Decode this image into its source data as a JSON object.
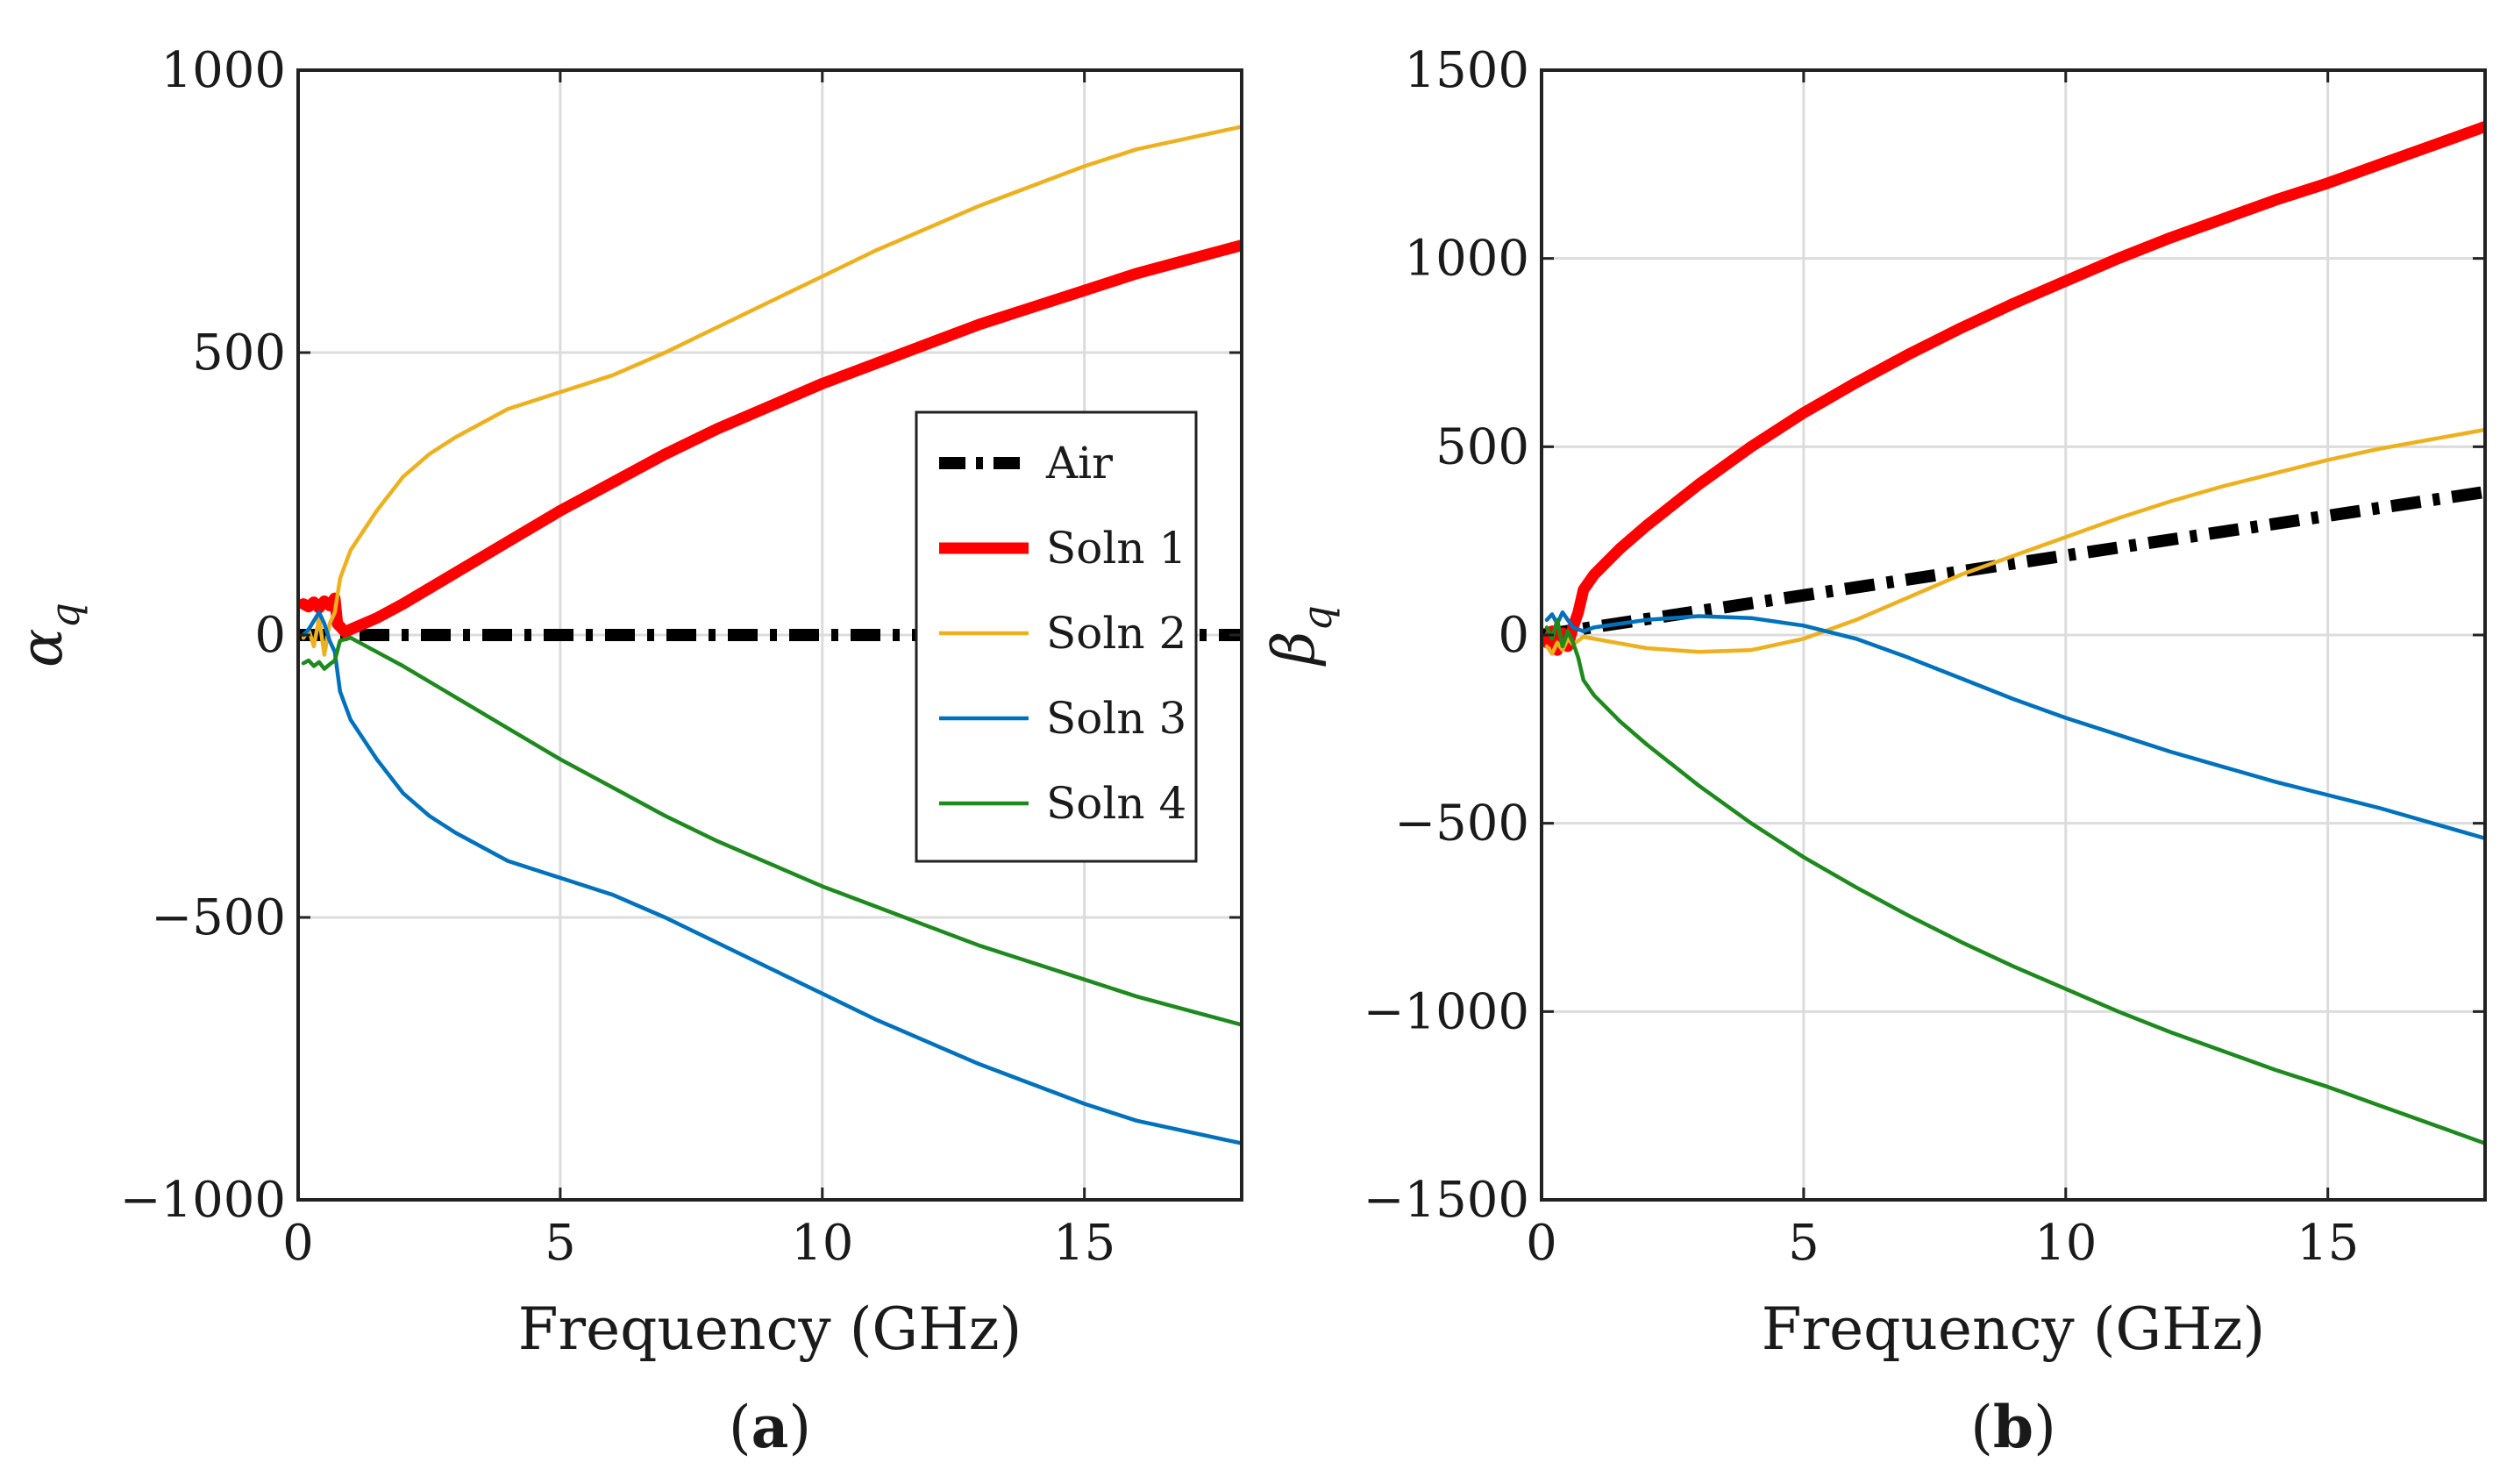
{
  "chart_data": [
    {
      "type": "line",
      "panel": "a",
      "caption_letter": "a",
      "ylabel_symbol": "α",
      "ylabel_subscript": "q",
      "xlabel": "Frequency (GHz)",
      "xlim": [
        0,
        18
      ],
      "ylim": [
        -1000,
        1000
      ],
      "xticks": [
        0,
        5,
        10,
        15
      ],
      "xtick_labels": [
        "0",
        "5",
        "10",
        "15"
      ],
      "yticks": [
        -1000,
        -500,
        0,
        500,
        1000
      ],
      "ytick_labels": [
        "−1000",
        "−500",
        "0",
        "500",
        "1000"
      ],
      "grid": true,
      "legend": {
        "placement": "right",
        "entries": [
          "Air",
          "Soln 1",
          "Soln 2",
          "Soln 3",
          "Soln 4"
        ]
      },
      "series": [
        {
          "name": "Air",
          "style": "dashdot",
          "color": "#000000",
          "x": [
            0,
            18
          ],
          "y": [
            0,
            0
          ]
        },
        {
          "name": "Soln 1",
          "style": "solid-thick",
          "color": "#ff0000",
          "x": [
            0.1,
            0.2,
            0.3,
            0.4,
            0.5,
            0.6,
            0.7,
            0.75,
            0.9,
            1,
            1.5,
            2,
            3,
            4,
            5,
            6,
            7,
            8,
            9,
            10,
            11,
            12,
            13,
            14,
            15,
            16,
            17,
            18
          ],
          "y": [
            55,
            50,
            58,
            48,
            60,
            52,
            65,
            20,
            5,
            10,
            30,
            55,
            110,
            165,
            220,
            270,
            320,
            365,
            405,
            445,
            480,
            515,
            550,
            580,
            610,
            640,
            665,
            690
          ]
        },
        {
          "name": "Soln 2",
          "style": "solid",
          "color": "#edb120",
          "x": [
            0.1,
            0.2,
            0.3,
            0.4,
            0.5,
            0.6,
            0.7,
            0.8,
            1,
            1.5,
            2,
            2.5,
            3,
            4,
            5,
            6,
            7,
            8,
            9,
            10,
            11,
            12,
            13,
            14,
            15,
            16,
            17,
            18
          ],
          "y": [
            -5,
            10,
            -20,
            30,
            -35,
            20,
            40,
            100,
            150,
            220,
            280,
            320,
            350,
            400,
            430,
            460,
            500,
            545,
            590,
            635,
            680,
            720,
            760,
            795,
            830,
            860,
            880,
            900
          ]
        },
        {
          "name": "Soln 3",
          "style": "solid",
          "color": "#0072bd",
          "x": [
            0.1,
            0.2,
            0.3,
            0.4,
            0.5,
            0.6,
            0.7,
            0.8,
            1,
            1.5,
            2,
            2.5,
            3,
            4,
            5,
            6,
            7,
            8,
            9,
            10,
            11,
            12,
            13,
            14,
            15,
            16,
            17,
            18
          ],
          "y": [
            0,
            10,
            25,
            40,
            20,
            -10,
            -30,
            -100,
            -150,
            -220,
            -280,
            -320,
            -350,
            -400,
            -430,
            -460,
            -500,
            -545,
            -590,
            -635,
            -680,
            -720,
            -760,
            -795,
            -830,
            -860,
            -880,
            -900
          ]
        },
        {
          "name": "Soln 4",
          "style": "solid",
          "color": "#1e8a1e",
          "x": [
            0.1,
            0.2,
            0.3,
            0.4,
            0.5,
            0.6,
            0.7,
            0.8,
            1,
            1.5,
            2,
            3,
            4,
            5,
            6,
            7,
            8,
            9,
            10,
            11,
            12,
            13,
            14,
            15,
            16,
            17,
            18
          ],
          "y": [
            -50,
            -45,
            -55,
            -48,
            -60,
            -52,
            -45,
            -10,
            -5,
            -30,
            -55,
            -110,
            -165,
            -220,
            -270,
            -320,
            -365,
            -405,
            -445,
            -480,
            -515,
            -550,
            -580,
            -610,
            -640,
            -665,
            -690
          ]
        }
      ]
    },
    {
      "type": "line",
      "panel": "b",
      "caption_letter": "b",
      "ylabel_symbol": "β",
      "ylabel_subscript": "q",
      "xlabel": "Frequency (GHz)",
      "xlim": [
        0,
        18
      ],
      "ylim": [
        -1500,
        1500
      ],
      "xticks": [
        0,
        5,
        10,
        15
      ],
      "xtick_labels": [
        "0",
        "5",
        "10",
        "15"
      ],
      "yticks": [
        -1500,
        -1000,
        -500,
        0,
        500,
        1000,
        1500
      ],
      "ytick_labels": [
        "−1500",
        "−1000",
        "−500",
        "0",
        "500",
        "1000",
        "1500"
      ],
      "grid": true,
      "legend": null,
      "series": [
        {
          "name": "Air",
          "style": "dashdot",
          "color": "#000000",
          "x": [
            0,
            18
          ],
          "y": [
            0,
            380
          ]
        },
        {
          "name": "Soln 1",
          "style": "solid-thick",
          "color": "#ff0000",
          "x": [
            0.1,
            0.2,
            0.3,
            0.4,
            0.5,
            0.6,
            0.7,
            0.8,
            1,
            1.5,
            2,
            3,
            4,
            5,
            6,
            7,
            8,
            9,
            10,
            11,
            12,
            13,
            14,
            15,
            16,
            17,
            18
          ],
          "y": [
            -20,
            10,
            -40,
            5,
            -30,
            20,
            60,
            120,
            160,
            230,
            290,
            400,
            500,
            590,
            670,
            745,
            815,
            880,
            940,
            1000,
            1055,
            1105,
            1155,
            1200,
            1250,
            1300,
            1350
          ]
        },
        {
          "name": "Soln 2",
          "style": "solid",
          "color": "#edb120",
          "x": [
            0.1,
            0.2,
            0.3,
            0.4,
            0.5,
            0.6,
            0.8,
            1,
            2,
            3,
            4,
            5,
            6,
            7,
            8,
            9,
            10,
            11,
            12,
            13,
            14,
            15,
            16,
            17,
            18
          ],
          "y": [
            -30,
            -50,
            -20,
            -40,
            -10,
            -25,
            -5,
            -10,
            -35,
            -45,
            -40,
            -10,
            40,
            100,
            160,
            210,
            260,
            310,
            355,
            395,
            430,
            465,
            495,
            520,
            545
          ]
        },
        {
          "name": "Soln 3",
          "style": "solid",
          "color": "#0072bd",
          "x": [
            0.1,
            0.2,
            0.3,
            0.4,
            0.5,
            0.6,
            0.8,
            1,
            2,
            3,
            4,
            5,
            6,
            7,
            8,
            9,
            10,
            11,
            12,
            13,
            14,
            15,
            16,
            17,
            18
          ],
          "y": [
            40,
            55,
            30,
            60,
            40,
            20,
            10,
            20,
            40,
            50,
            45,
            25,
            -10,
            -60,
            -115,
            -170,
            -220,
            -265,
            -310,
            -350,
            -390,
            -425,
            -460,
            -500,
            -540
          ]
        },
        {
          "name": "Soln 4",
          "style": "solid",
          "color": "#1e8a1e",
          "x": [
            0.1,
            0.2,
            0.3,
            0.4,
            0.5,
            0.6,
            0.7,
            0.8,
            1,
            1.5,
            2,
            3,
            4,
            5,
            6,
            7,
            8,
            9,
            10,
            11,
            12,
            13,
            14,
            15,
            16,
            17,
            18
          ],
          "y": [
            20,
            -10,
            40,
            -30,
            10,
            -20,
            -60,
            -120,
            -160,
            -230,
            -290,
            -400,
            -500,
            -590,
            -670,
            -745,
            -815,
            -880,
            -940,
            -1000,
            -1055,
            -1105,
            -1155,
            -1200,
            -1250,
            -1300,
            -1350
          ]
        }
      ]
    }
  ]
}
